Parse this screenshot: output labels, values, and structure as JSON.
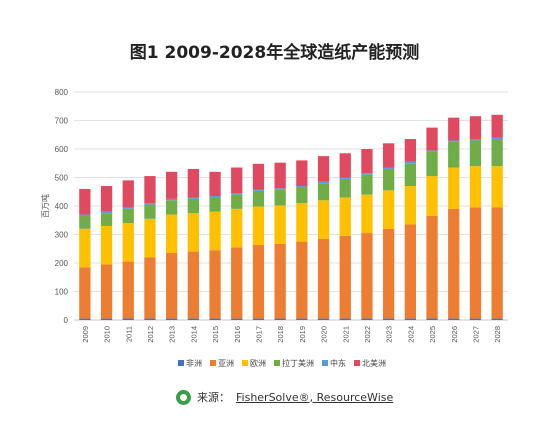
{
  "title": "图1  2009-2028年全球造纸产能预测",
  "source": {
    "prefix": "来源：",
    "text": "FisherSolve®, ResourceWise"
  },
  "chart_data": {
    "type": "bar",
    "stacked": true,
    "title": "图1  2009-2028年全球造纸产能预测",
    "ylabel": "百万吨",
    "ylim": [
      0,
      800
    ],
    "yticks": [
      0,
      100,
      200,
      300,
      400,
      500,
      600,
      700,
      800
    ],
    "grid": true,
    "legend_position": "bottom",
    "categories": [
      "2009",
      "2010",
      "2011",
      "2012",
      "2013",
      "2014",
      "2015",
      "2016",
      "2017",
      "2018",
      "2019",
      "2020",
      "2021",
      "2022",
      "2023",
      "2024",
      "2025",
      "2026",
      "2027",
      "2028"
    ],
    "series": [
      {
        "name": "非洲",
        "color": "#4472c4",
        "values": [
          5,
          5,
          5,
          5,
          5,
          5,
          5,
          5,
          5,
          5,
          5,
          5,
          5,
          5,
          5,
          5,
          5,
          5,
          5,
          5
        ]
      },
      {
        "name": "亚洲",
        "color": "#ed7d31",
        "values": [
          180,
          190,
          200,
          215,
          230,
          235,
          240,
          250,
          258,
          262,
          270,
          280,
          290,
          300,
          315,
          330,
          360,
          385,
          390,
          390
        ]
      },
      {
        "name": "欧洲",
        "color": "#ffc000",
        "values": [
          135,
          135,
          135,
          135,
          135,
          135,
          135,
          135,
          135,
          135,
          135,
          135,
          135,
          135,
          135,
          135,
          140,
          145,
          145,
          145
        ]
      },
      {
        "name": "拉丁美洲",
        "color": "#70ad47",
        "values": [
          45,
          45,
          50,
          50,
          50,
          50,
          50,
          50,
          55,
          55,
          55,
          60,
          65,
          70,
          75,
          80,
          85,
          90,
          90,
          95
        ]
      },
      {
        "name": "中东",
        "color": "#5b9bd5",
        "values": [
          5,
          5,
          5,
          5,
          5,
          5,
          5,
          5,
          5,
          5,
          5,
          5,
          5,
          5,
          5,
          5,
          5,
          5,
          5,
          5
        ]
      },
      {
        "name": "北美洲",
        "color": "#e04a60",
        "values": [
          90,
          90,
          95,
          95,
          95,
          100,
          85,
          90,
          90,
          90,
          90,
          90,
          85,
          85,
          85,
          80,
          80,
          80,
          80,
          80
        ]
      }
    ]
  }
}
